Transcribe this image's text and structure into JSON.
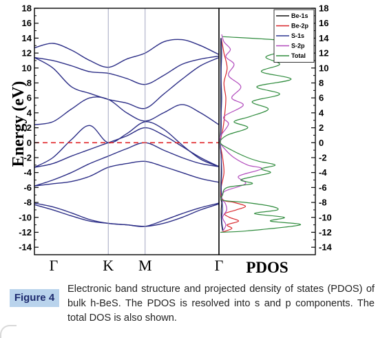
{
  "chart_data": [
    {
      "type": "line",
      "panel": "band-structure",
      "ylabel": "Energy (eV)",
      "ylim": [
        -15,
        18
      ],
      "yticks": [
        18,
        16,
        14,
        12,
        10,
        8,
        6,
        4,
        2,
        0,
        -2,
        -4,
        -6,
        -8,
        -10,
        -12,
        -14
      ],
      "kpoints": [
        "Γ",
        "K",
        "M",
        "Γ"
      ],
      "kpoint_positions": [
        0,
        1,
        1.5,
        2.5
      ],
      "fermi_level": 0,
      "series_color": "#2b2d86",
      "fermi_color": "#e0262a",
      "bands": [
        {
          "x": [
            0,
            0.25,
            0.5,
            0.75,
            1,
            1.25,
            1.5,
            1.75,
            2,
            2.25,
            2.5
          ],
          "y": [
            -8.3,
            -9.0,
            -9.8,
            -10.5,
            -10.8,
            -11.0,
            -11.2,
            -10.8,
            -10.0,
            -9.0,
            -8.2
          ]
        },
        {
          "x": [
            0,
            0.25,
            0.5,
            0.75,
            1,
            1.25,
            1.5,
            1.75,
            2,
            2.25,
            2.5
          ],
          "y": [
            -8.1,
            -8.6,
            -9.4,
            -10.3,
            -10.8,
            -11.0,
            -11.2,
            -10.4,
            -9.5,
            -8.7,
            -8.1
          ]
        },
        {
          "x": [
            0,
            0.25,
            0.5,
            0.75,
            1,
            1.25,
            1.5,
            1.75,
            2,
            2.25,
            2.5
          ],
          "y": [
            -5.8,
            -5.5,
            -5.2,
            -4.5,
            -3.3,
            -2.8,
            -2.5,
            -3.2,
            -4.0,
            -4.8,
            -5.3
          ]
        },
        {
          "x": [
            0,
            0.25,
            0.5,
            0.75,
            1,
            1.25,
            1.5,
            1.75,
            2,
            2.25,
            2.5
          ],
          "y": [
            -5.8,
            -5.0,
            -4.0,
            -2.8,
            -1.8,
            -0.8,
            0.0,
            -1.0,
            -2.0,
            -2.8,
            -3.2
          ]
        },
        {
          "x": [
            0,
            0.25,
            0.5,
            0.75,
            1,
            1.25,
            1.5,
            1.75,
            2,
            2.25,
            2.5
          ],
          "y": [
            -3.3,
            -2.8,
            -1.8,
            -0.9,
            0.0,
            0.9,
            2.0,
            1.0,
            -0.5,
            -2.0,
            -3.2
          ]
        },
        {
          "x": [
            0,
            0.25,
            0.5,
            0.75,
            1,
            1.25,
            1.5,
            1.75,
            2,
            2.25,
            2.5
          ],
          "y": [
            -3.3,
            -2.0,
            0.4,
            2.3,
            0.0,
            1.2,
            2.8,
            1.8,
            -0.3,
            -2.2,
            -3.2
          ]
        },
        {
          "x": [
            0,
            0.25,
            0.5,
            0.75,
            1,
            1.25,
            1.5,
            1.75,
            2,
            2.25,
            2.5
          ],
          "y": [
            2.4,
            2.8,
            4.5,
            6.0,
            5.8,
            4.0,
            2.9,
            4.0,
            5.1,
            4.0,
            2.4
          ]
        },
        {
          "x": [
            0,
            0.25,
            0.5,
            0.75,
            1,
            1.25,
            1.5,
            1.75,
            2,
            2.25,
            2.5
          ],
          "y": [
            11.4,
            10.0,
            7.5,
            6.6,
            5.8,
            5.3,
            4.6,
            6.5,
            8.5,
            10.3,
            11.4
          ]
        },
        {
          "x": [
            0,
            0.25,
            0.5,
            0.75,
            1,
            1.25,
            1.5,
            1.75,
            2,
            2.25,
            2.5
          ],
          "y": [
            11.4,
            11.0,
            10.3,
            9.5,
            9.3,
            8.6,
            7.8,
            9.0,
            10.5,
            11.2,
            11.6
          ]
        },
        {
          "x": [
            0,
            0.25,
            0.5,
            0.75,
            1,
            1.25,
            1.5,
            1.75,
            2,
            2.25,
            2.5
          ],
          "y": [
            12.7,
            13.3,
            12.4,
            11.0,
            10.1,
            11.2,
            12.0,
            13.5,
            13.8,
            13.0,
            11.8
          ]
        }
      ]
    },
    {
      "type": "line",
      "panel": "pdos",
      "xlabel": "PDOS",
      "ylim": [
        -15,
        18
      ],
      "yticks": [
        18,
        16,
        14,
        12,
        10,
        8,
        6,
        4,
        2,
        0,
        -2,
        -4,
        -6,
        -8,
        -10,
        -12,
        -14
      ],
      "legend_position": "top-right",
      "series": [
        {
          "name": "Be-1s",
          "color": "#111111",
          "energy": [
            -11.8,
            -11.0,
            -10.0,
            -9.0,
            -8.0,
            -7.5,
            -6,
            -4,
            -2,
            0,
            2,
            4,
            6,
            8,
            10,
            12,
            14
          ],
          "values": [
            0.05,
            0.03,
            0.02,
            0.02,
            0.03,
            0.01,
            0.01,
            0.02,
            0.02,
            0,
            0.01,
            0.01,
            0.01,
            0.01,
            0.01,
            0.01,
            0.01
          ]
        },
        {
          "name": "Be-2p",
          "color": "#d8262b",
          "energy": [
            -12.0,
            -11.5,
            -11.0,
            -10.5,
            -10.0,
            -9.5,
            -9.0,
            -8.5,
            -8.0,
            -7.6,
            -6,
            -4,
            -2,
            0,
            2,
            4,
            6,
            8,
            10,
            12,
            14
          ],
          "values": [
            0.02,
            0.25,
            0.15,
            0.4,
            0.2,
            0.1,
            0.35,
            0.55,
            0.3,
            0.05,
            0.02,
            0.08,
            0.05,
            0,
            0.06,
            0.1,
            0.12,
            0.08,
            0.15,
            0.08,
            0.02
          ]
        },
        {
          "name": "S-1s",
          "color": "#2b3590",
          "energy": [
            -11.8,
            -11.0,
            -10.0,
            -9.0,
            -8.0,
            -6,
            -4,
            -2,
            0,
            2,
            4,
            6,
            8,
            10,
            12,
            14
          ],
          "values": [
            0.06,
            0.04,
            0.03,
            0.05,
            0.04,
            0.02,
            0.03,
            0.02,
            0,
            0.02,
            0.02,
            0.03,
            0.02,
            0.02,
            0.03,
            0.02
          ]
        },
        {
          "name": "S-2p",
          "color": "#b24cbd",
          "energy": [
            -11.8,
            -11.0,
            -10.0,
            -9.0,
            -8.0,
            -7.6,
            -6.5,
            -5.5,
            -4.5,
            -3.5,
            -3.0,
            -2.0,
            -1.0,
            0,
            1,
            2.5,
            3.5,
            5.0,
            6.0,
            7.5,
            9.0,
            10.5,
            11.5,
            12.5,
            13.5,
            14.5
          ],
          "values": [
            0.06,
            0.12,
            0.05,
            0.14,
            0.1,
            0.03,
            0.1,
            0.55,
            0.4,
            0.9,
            0.6,
            0.3,
            0.12,
            0,
            0.02,
            0.18,
            0.08,
            0.5,
            0.25,
            0.45,
            0.18,
            0.3,
            0.12,
            0.22,
            0.08,
            0.03
          ]
        },
        {
          "name": "Total",
          "color": "#2e8b3c",
          "energy": [
            -12.0,
            -11.8,
            -11.0,
            -10.5,
            -10.0,
            -9.5,
            -9.0,
            -8.5,
            -8.0,
            -7.7,
            -7.0,
            -6.0,
            -5.5,
            -5.0,
            -4.5,
            -4.0,
            -3.5,
            -3.0,
            -2.5,
            -2.0,
            -1.0,
            0,
            1.0,
            2.0,
            2.8,
            3.5,
            4.5,
            5.5,
            6.5,
            7.5,
            8.5,
            9.5,
            10.5,
            11.5,
            12.5,
            13.5,
            14.2
          ],
          "values": [
            0.0,
            0.6,
            1.75,
            1.1,
            1.4,
            0.75,
            1.25,
            1.1,
            0.55,
            0.05,
            0.05,
            0.15,
            0.7,
            0.45,
            0.75,
            1.1,
            0.9,
            1.2,
            0.85,
            0.6,
            0.25,
            0.0,
            0.15,
            0.6,
            0.3,
            0.65,
            1.05,
            0.7,
            1.3,
            0.8,
            1.55,
            0.9,
            1.3,
            1.0,
            1.55,
            1.7,
            0.05
          ]
        }
      ]
    }
  ],
  "caption": {
    "tag": "Figure 4",
    "text": "Electronic band structure and projected density of states (PDOS) of bulk h-BeS. The PDOS is resolved into s and p components. The total DOS is also shown."
  }
}
